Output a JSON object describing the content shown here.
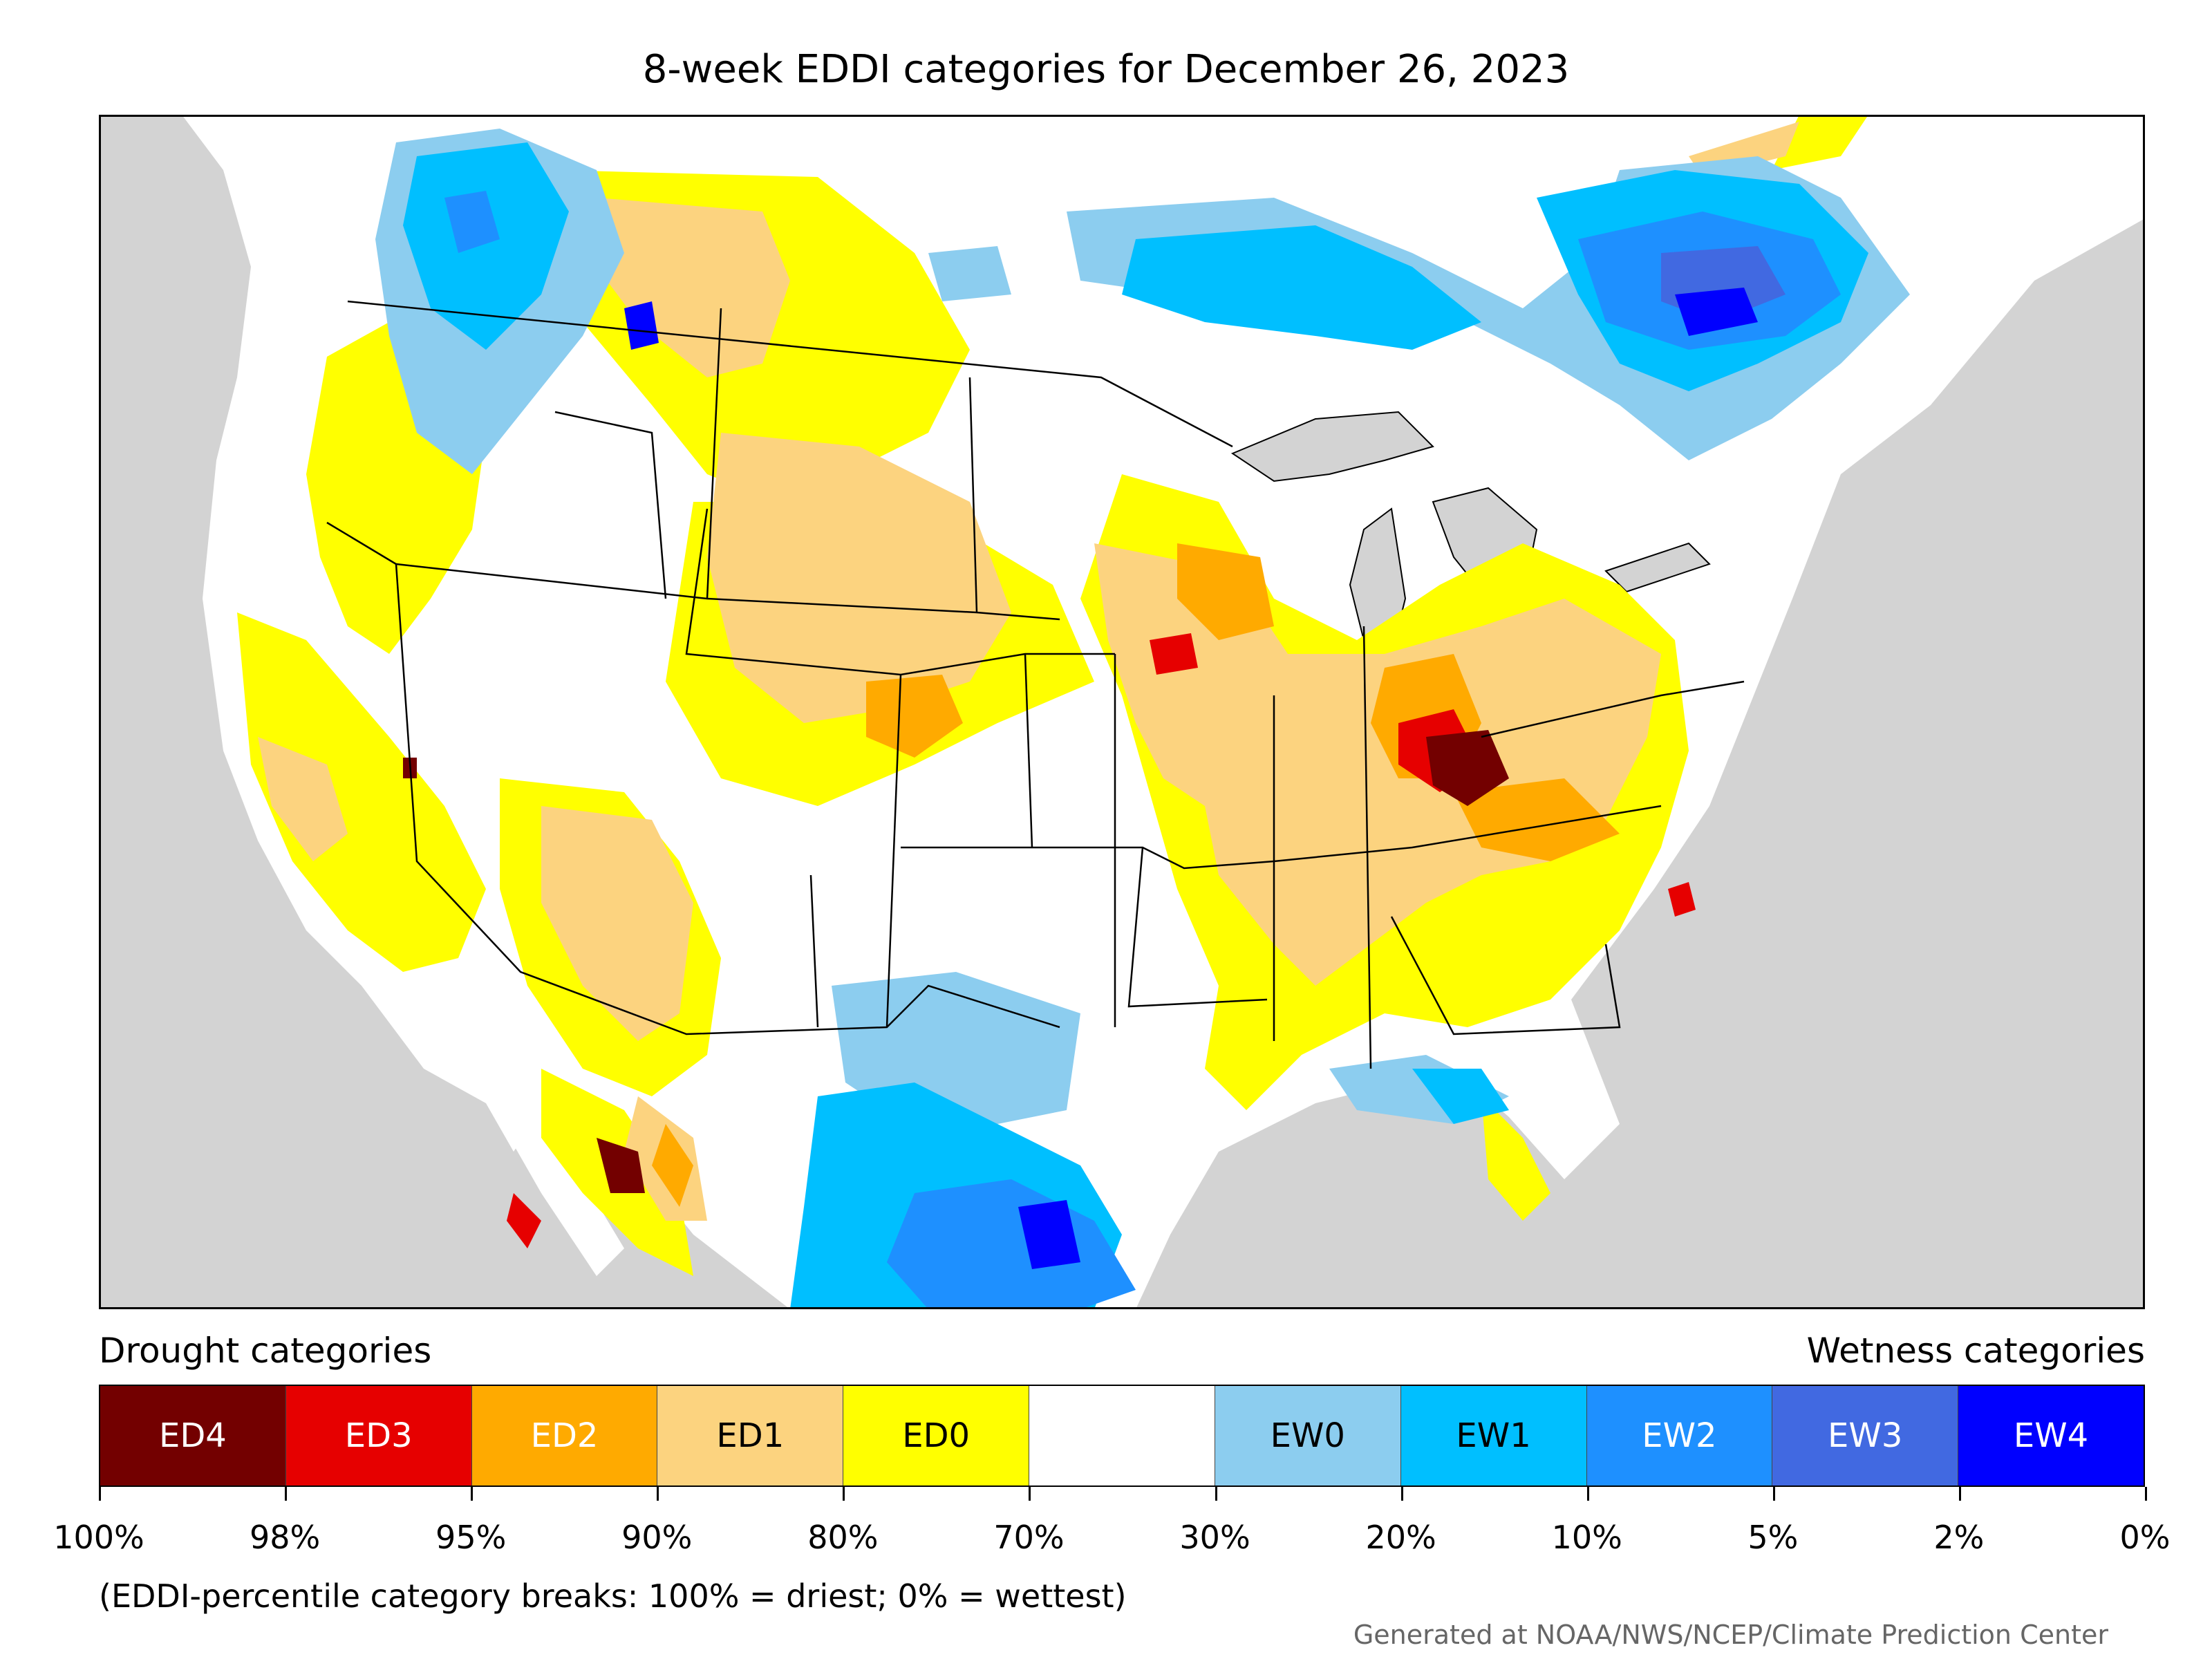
{
  "title": "8-week EDDI categories for December 26, 2023",
  "legend": {
    "left_title": "Drought categories",
    "right_title": "Wetness categories",
    "categories": [
      {
        "label": "ED4",
        "color": "#730000",
        "text_color": "#ffffff"
      },
      {
        "label": "ED3",
        "color": "#e60000",
        "text_color": "#ffffff"
      },
      {
        "label": "ED2",
        "color": "#ffaa00",
        "text_color": "#ffffff"
      },
      {
        "label": "ED1",
        "color": "#fcd37f",
        "text_color": "#000000"
      },
      {
        "label": "ED0",
        "color": "#ffff00",
        "text_color": "#000000"
      },
      {
        "label": "",
        "color": "#ffffff",
        "text_color": "#000000"
      },
      {
        "label": "EW0",
        "color": "#8ccdef",
        "text_color": "#000000"
      },
      {
        "label": "EW1",
        "color": "#00bfff",
        "text_color": "#000000"
      },
      {
        "label": "EW2",
        "color": "#1e90ff",
        "text_color": "#ffffff"
      },
      {
        "label": "EW3",
        "color": "#4169e1",
        "text_color": "#ffffff"
      },
      {
        "label": "EW4",
        "color": "#0000ff",
        "text_color": "#ffffff"
      }
    ],
    "ticks": [
      "100%",
      "98%",
      "95%",
      "90%",
      "80%",
      "70%",
      "30%",
      "20%",
      "10%",
      "5%",
      "2%",
      "0%"
    ]
  },
  "footnote": "(EDDI-percentile category breaks: 100% = driest; 0% = wettest)",
  "credit": "Generated at NOAA/NWS/NCEP/Climate Prediction Center"
}
